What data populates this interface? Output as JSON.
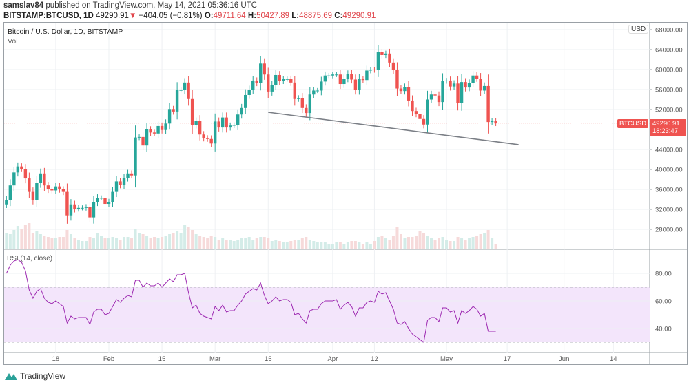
{
  "header": {
    "user": "samslav84",
    "published": "published on TradingView.com, May 14, 2021 05:36:16 UTC",
    "symbol": "BITSTAMP:BTCUSD, 1D",
    "last": "49290.91",
    "change": "−404.05 (−0.81%)",
    "o_label": "O:",
    "o": "49711.64",
    "h_label": "H:",
    "h": "50427.89",
    "l_label": "L:",
    "l": "48875.69",
    "c_label": "C:",
    "c": "49290.91"
  },
  "legend": {
    "title": "Bitcoin / U.S. Dollar, 1D, BITSTAMP",
    "vol": "Vol",
    "rsi": "RSI (14, close)"
  },
  "price_tag": {
    "symbol": "BTCUSD",
    "price": "49290.91",
    "countdown": "18:23:47",
    "currency": "USD"
  },
  "brand": "TradingView",
  "colors": {
    "up": "#26a69a",
    "down": "#ef5350",
    "rsi": "#9c27b0",
    "rsi_band": "#f3e5fb"
  },
  "chart_data": {
    "type": "candlestick",
    "title": "Bitcoin / U.S. Dollar, 1D, BITSTAMP",
    "start_date": "2021-01-05",
    "end_date": "2021-05-14",
    "ylim": [
      24000,
      68000
    ],
    "price_ticks": [
      "68000.00",
      "64000.00",
      "60000.00",
      "56000.00",
      "52000.00",
      "44000.00",
      "40000.00",
      "36000.00",
      "32000.00",
      "28000.00"
    ],
    "price_tick_values": [
      68000,
      64000,
      60000,
      56000,
      52000,
      44000,
      40000,
      36000,
      32000,
      28000
    ],
    "date_ticks": [
      {
        "label": "18",
        "day": 13
      },
      {
        "label": "Feb",
        "day": 27
      },
      {
        "label": "15",
        "day": 41
      },
      {
        "label": "Mar",
        "day": 55
      },
      {
        "label": "15",
        "day": 69
      },
      {
        "label": "Apr",
        "day": 86
      },
      {
        "label": "12",
        "day": 97
      },
      {
        "label": "May",
        "day": 116
      },
      {
        "label": "17",
        "day": 132
      },
      {
        "label": "Jun",
        "day": 147
      },
      {
        "label": "14",
        "day": 160
      }
    ],
    "first_open": 33000,
    "closes": [
      33900,
      36800,
      39400,
      40600,
      40100,
      38200,
      35500,
      33900,
      37300,
      39200,
      36800,
      36000,
      35800,
      36600,
      36000,
      35500,
      30800,
      33000,
      32100,
      32300,
      32300,
      32500,
      30400,
      33400,
      34300,
      34300,
      33100,
      33500,
      35500,
      37600,
      36900,
      38300,
      39200,
      38800,
      46400,
      46500,
      44800,
      48000,
      47400,
      47200,
      48700,
      47900,
      49200,
      52100,
      51600,
      55900,
      55900,
      57400,
      54100,
      48900,
      49700,
      47000,
      46300,
      46100,
      45200,
      49600,
      48400,
      50400,
      48400,
      48800,
      48900,
      51000,
      52300,
      54900,
      56000,
      57800,
      57300,
      61200,
      59000,
      55600,
      56900,
      58900,
      57700,
      58100,
      58100,
      57400,
      54100,
      54300,
      52300,
      51300,
      55000,
      55800,
      55800,
      57600,
      58800,
      58800,
      59000,
      59000,
      57100,
      58200,
      59100,
      58000,
      56000,
      58100,
      57900,
      59800,
      60000,
      59900,
      63500,
      62900,
      63200,
      61400,
      60000,
      56200,
      55700,
      56500,
      53800,
      51700,
      51100,
      50100,
      49000,
      54000,
      55000,
      54800,
      53500,
      57700,
      57800,
      56600,
      57200,
      53300,
      57500,
      56400,
      57300,
      58800,
      58200,
      55800,
      56700,
      49500,
      49711.64,
      49290.91
    ],
    "volume_relative": [
      60,
      55,
      70,
      85,
      75,
      90,
      95,
      60,
      65,
      55,
      50,
      45,
      40,
      40,
      45,
      45,
      70,
      55,
      40,
      35,
      30,
      30,
      45,
      40,
      60,
      50,
      40,
      40,
      45,
      40,
      35,
      45,
      45,
      40,
      75,
      60,
      55,
      50,
      40,
      45,
      40,
      45,
      50,
      55,
      60,
      65,
      60,
      90,
      80,
      70,
      55,
      50,
      45,
      40,
      50,
      45,
      35,
      40,
      35,
      35,
      30,
      35,
      40,
      40,
      45,
      35,
      40,
      45,
      45,
      40,
      30,
      35,
      30,
      25,
      25,
      30,
      35,
      35,
      40,
      45,
      35,
      30,
      25,
      25,
      25,
      20,
      20,
      25,
      25,
      20,
      25,
      30,
      30,
      25,
      20,
      25,
      20,
      30,
      45,
      50,
      40,
      35,
      50,
      80,
      55,
      40,
      45,
      45,
      50,
      65,
      60,
      50,
      40,
      35,
      40,
      45,
      35,
      30,
      30,
      45,
      40,
      35,
      40,
      45,
      50,
      55,
      60,
      70,
      40,
      20
    ],
    "rsi": {
      "name": "RSI (14, close)",
      "ylim": [
        20,
        95
      ],
      "upper_band": 70,
      "lower_band": 30,
      "ticks": [
        "80.00",
        "60.00",
        "40.00"
      ],
      "tick_values": [
        80,
        60,
        40
      ],
      "values": [
        80,
        86,
        89,
        90,
        88,
        82,
        68,
        62,
        67,
        69,
        62,
        59,
        58,
        60,
        58,
        56,
        44,
        49,
        47,
        48,
        48,
        48,
        43,
        52,
        54,
        54,
        50,
        51,
        56,
        61,
        59,
        62,
        64,
        63,
        75,
        75,
        70,
        73,
        71,
        71,
        73,
        70,
        73,
        76,
        74,
        79,
        79,
        80,
        66,
        55,
        57,
        51,
        49,
        48,
        47,
        56,
        53,
        57,
        52,
        53,
        53,
        57,
        60,
        65,
        67,
        69,
        68,
        73,
        64,
        58,
        60,
        63,
        60,
        61,
        61,
        59,
        50,
        51,
        47,
        44,
        53,
        54,
        54,
        58,
        60,
        60,
        60,
        61,
        54,
        57,
        59,
        56,
        49,
        55,
        55,
        59,
        60,
        59,
        67,
        65,
        66,
        60,
        54,
        44,
        43,
        45,
        40,
        36,
        34,
        32,
        30,
        46,
        48,
        48,
        45,
        55,
        55,
        52,
        53,
        44,
        53,
        51,
        53,
        56,
        54,
        49,
        51,
        38,
        38,
        38
      ]
    },
    "trendline": {
      "from": {
        "day": 69,
        "price": 51450
      },
      "to": {
        "day": 135,
        "price": 44970
      }
    }
  }
}
